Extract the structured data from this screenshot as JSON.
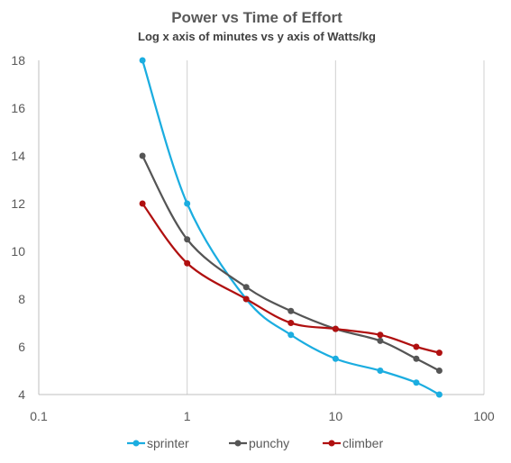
{
  "chart_data": {
    "type": "line",
    "title": "Power vs Time of Effort",
    "subtitle": "Log x axis of minutes vs y axis of Watts/kg",
    "xlabel": "",
    "ylabel": "",
    "x_scale": "log",
    "xlim": [
      0.1,
      100
    ],
    "ylim": [
      4,
      18
    ],
    "x_ticks": [
      0.1,
      1,
      10,
      100
    ],
    "x_tick_labels": [
      "0.1",
      "1",
      "10",
      "100"
    ],
    "y_ticks": [
      4,
      6,
      8,
      10,
      12,
      14,
      16,
      18
    ],
    "y_tick_labels": [
      "4",
      "6",
      "8",
      "10",
      "12",
      "14",
      "16",
      "18"
    ],
    "grid": "vertical",
    "legend_position": "bottom",
    "series": [
      {
        "name": "sprinter",
        "color": "#1BADE0",
        "x": [
          0.5,
          1,
          2.5,
          5,
          10,
          20,
          35,
          50
        ],
        "y": [
          18,
          12,
          8,
          6.5,
          5.5,
          5,
          4.5,
          4
        ]
      },
      {
        "name": "punchy",
        "color": "#555555",
        "x": [
          0.5,
          1,
          2.5,
          5,
          10,
          20,
          35,
          50
        ],
        "y": [
          14,
          10.5,
          8.5,
          7.5,
          6.75,
          6.25,
          5.5,
          5
        ]
      },
      {
        "name": "climber",
        "color": "#B01010",
        "x": [
          0.5,
          1,
          2.5,
          5,
          10,
          20,
          35,
          50
        ],
        "y": [
          12,
          9.5,
          8,
          7,
          6.75,
          6.5,
          6,
          5.75
        ]
      }
    ]
  }
}
